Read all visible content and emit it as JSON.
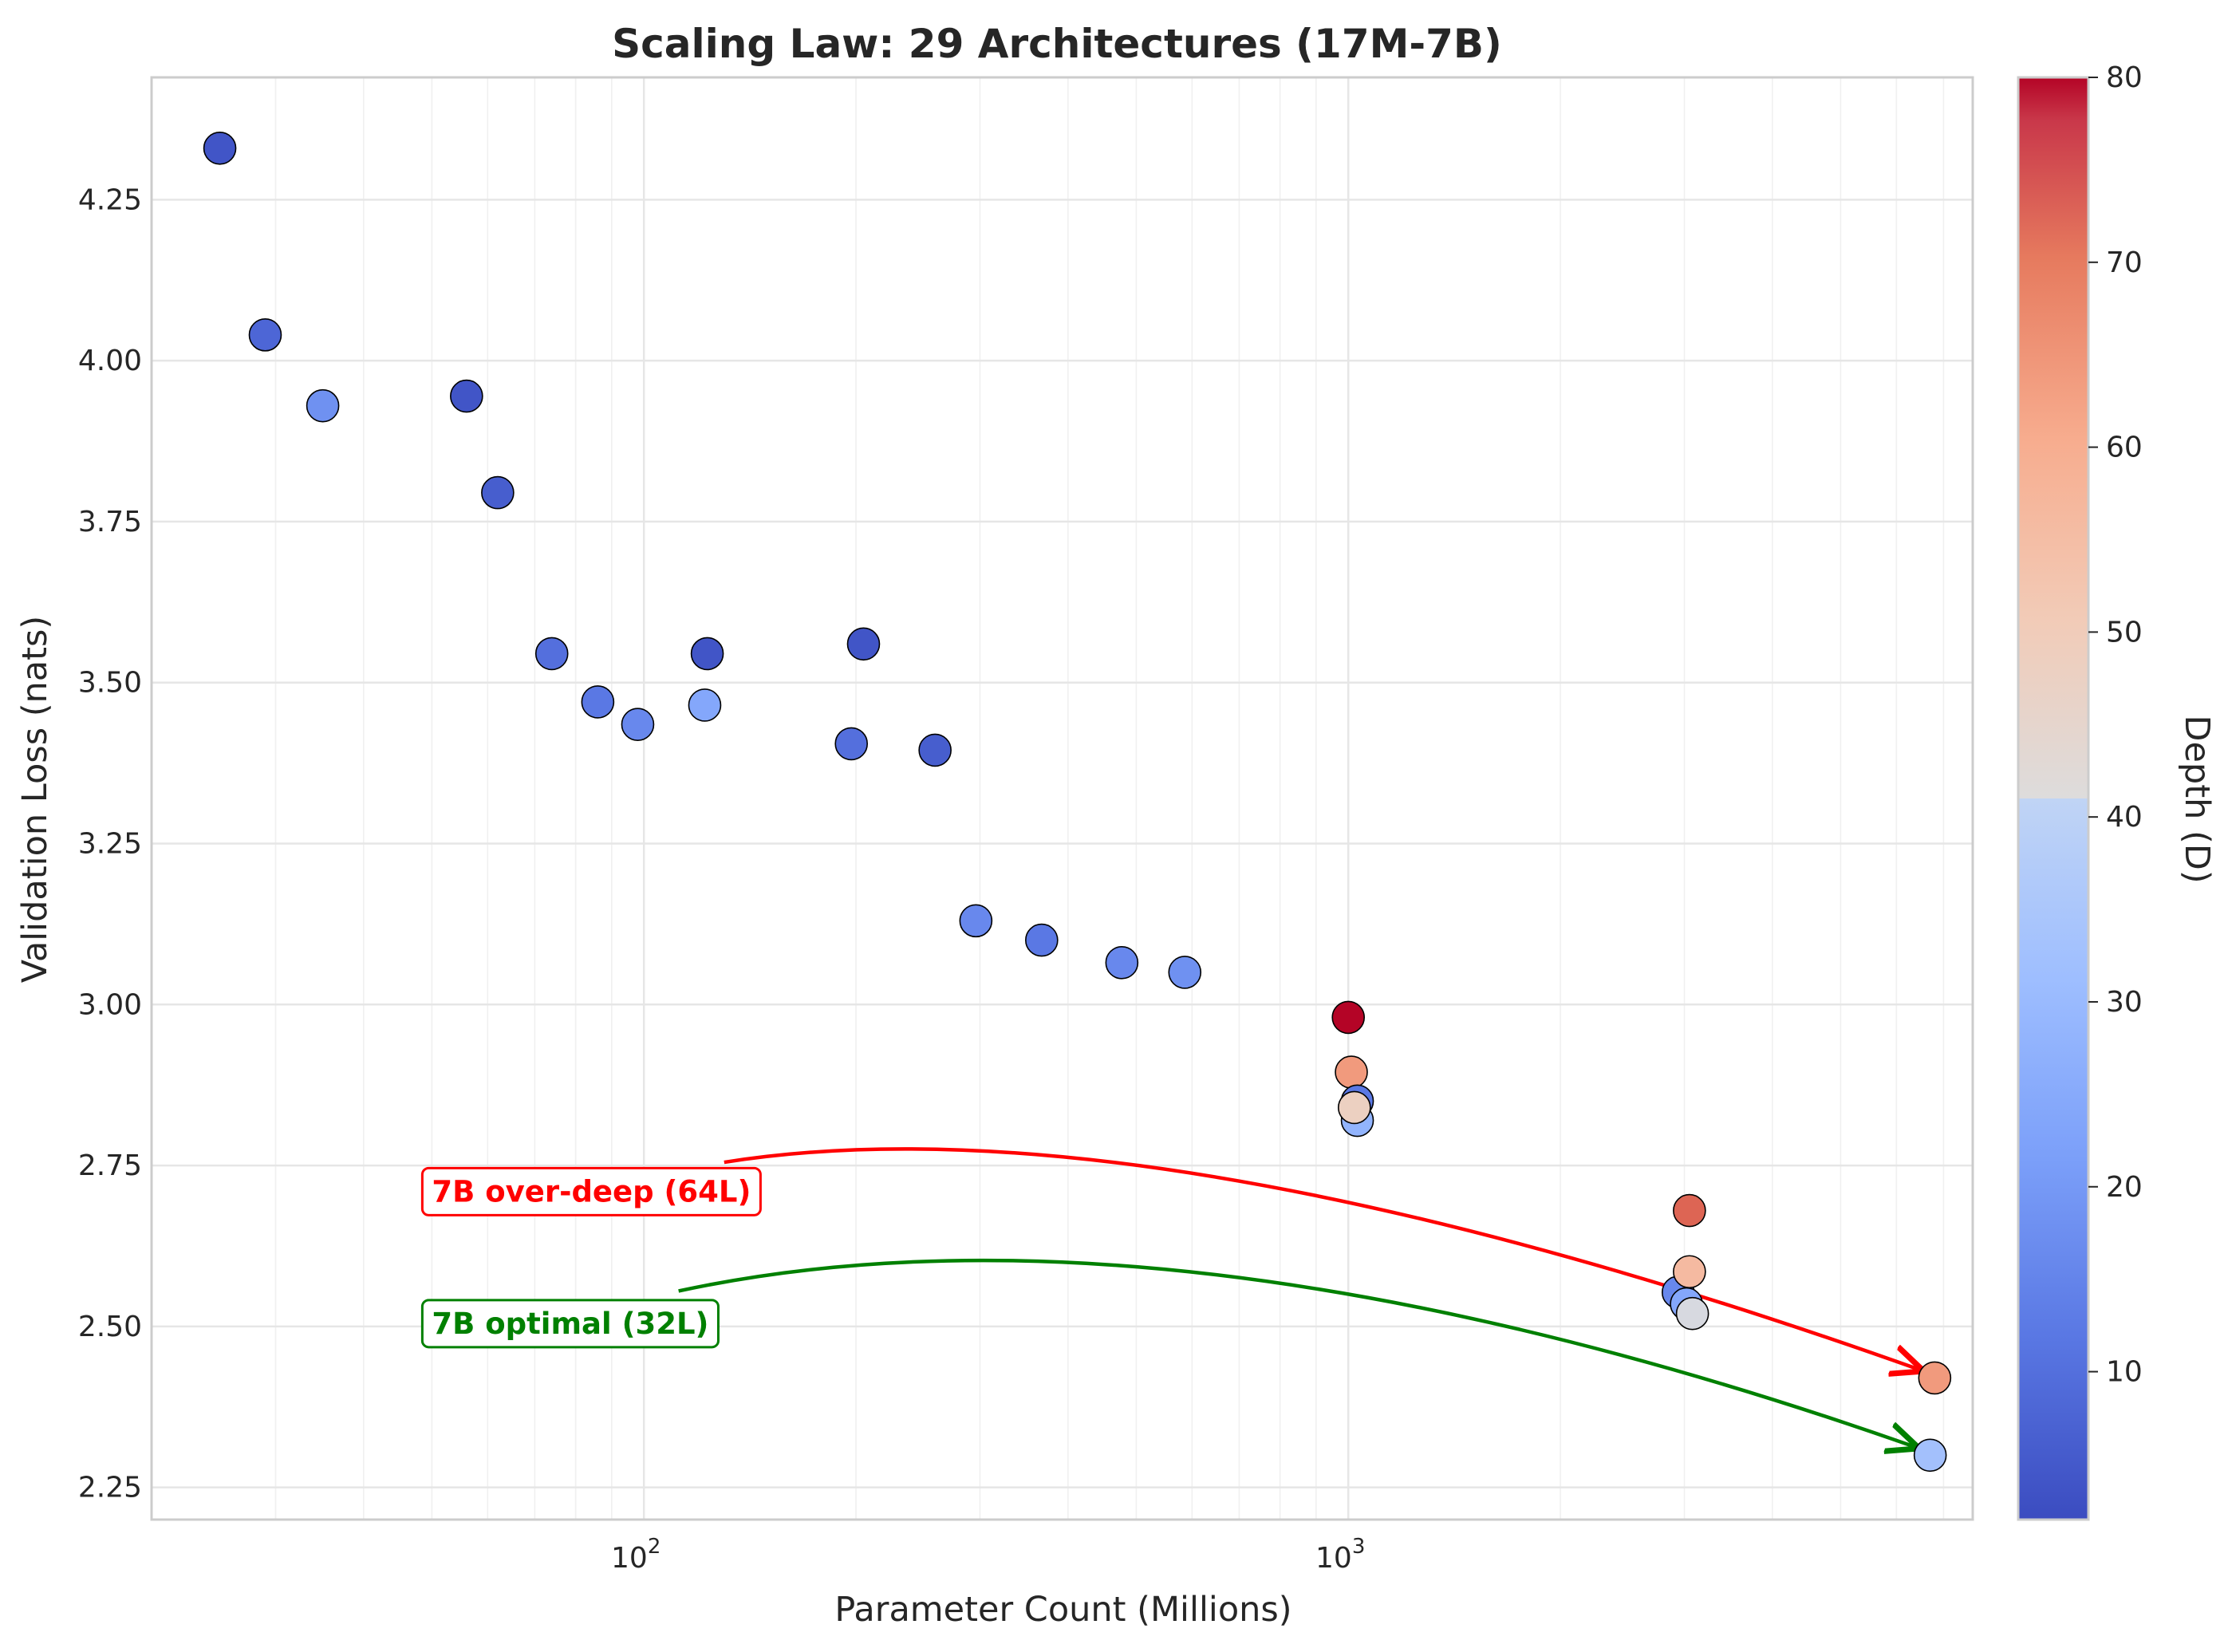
{
  "chart_data": {
    "type": "scatter",
    "title": "Scaling Law: 29 Architectures (17M-7B)",
    "xlabel": "Parameter Count (Millions)",
    "ylabel": "Validation Loss (nats)",
    "x_scale": "log",
    "xlim": [
      20,
      7700
    ],
    "ylim": [
      2.2,
      4.44
    ],
    "x_ticks": [
      {
        "value": 100,
        "base": "10",
        "exp": "2"
      },
      {
        "value": 1000,
        "base": "10",
        "exp": "3"
      }
    ],
    "y_ticks": [
      "2.25",
      "2.50",
      "2.75",
      "3.00",
      "3.25",
      "3.50",
      "3.75",
      "4.00",
      "4.25"
    ],
    "grid": true,
    "colorbar": {
      "label": "Depth (D)",
      "colormap": "coolwarm",
      "range": [
        2,
        80
      ],
      "ticks": [
        "10",
        "20",
        "30",
        "40",
        "50",
        "60",
        "70",
        "80"
      ]
    },
    "points": [
      {
        "x": 25,
        "y": 4.33,
        "depth": 4
      },
      {
        "x": 29,
        "y": 4.04,
        "depth": 8
      },
      {
        "x": 35,
        "y": 3.93,
        "depth": 18
      },
      {
        "x": 56,
        "y": 3.945,
        "depth": 4
      },
      {
        "x": 62,
        "y": 3.795,
        "depth": 6
      },
      {
        "x": 74,
        "y": 3.545,
        "depth": 10
      },
      {
        "x": 86,
        "y": 3.47,
        "depth": 12
      },
      {
        "x": 98,
        "y": 3.435,
        "depth": 16
      },
      {
        "x": 123,
        "y": 3.545,
        "depth": 4
      },
      {
        "x": 122,
        "y": 3.465,
        "depth": 24
      },
      {
        "x": 197,
        "y": 3.405,
        "depth": 10
      },
      {
        "x": 205,
        "y": 3.56,
        "depth": 4
      },
      {
        "x": 259,
        "y": 3.395,
        "depth": 6
      },
      {
        "x": 296,
        "y": 3.13,
        "depth": 16
      },
      {
        "x": 367,
        "y": 3.1,
        "depth": 12
      },
      {
        "x": 477,
        "y": 3.065,
        "depth": 16
      },
      {
        "x": 586,
        "y": 3.05,
        "depth": 18
      },
      {
        "x": 1000,
        "y": 2.98,
        "depth": 80
      },
      {
        "x": 1010,
        "y": 2.895,
        "depth": 64
      },
      {
        "x": 1030,
        "y": 2.85,
        "depth": 12
      },
      {
        "x": 1030,
        "y": 2.82,
        "depth": 28
      },
      {
        "x": 1020,
        "y": 2.84,
        "depth": 48
      },
      {
        "x": 3050,
        "y": 2.68,
        "depth": 72
      },
      {
        "x": 2940,
        "y": 2.553,
        "depth": 16
      },
      {
        "x": 3020,
        "y": 2.535,
        "depth": 24
      },
      {
        "x": 3050,
        "y": 2.585,
        "depth": 56
      },
      {
        "x": 3080,
        "y": 2.52,
        "depth": 40
      },
      {
        "x": 6800,
        "y": 2.42,
        "depth": 64
      },
      {
        "x": 6700,
        "y": 2.3,
        "depth": 32
      }
    ],
    "annotations": [
      {
        "text": "7B over-deep (64L)",
        "text_anchor": {
          "x": 50,
          "y": 2.71
        },
        "arrow_start": {
          "x": 130,
          "y": 2.755
        },
        "arrow_end": {
          "x": 6800,
          "y": 2.42
        },
        "control": {
          "x": 520,
          "y": 2.86
        },
        "color": "#ff0000"
      },
      {
        "text": "7B optimal (32L)",
        "text_anchor": {
          "x": 50,
          "y": 2.505
        },
        "arrow_start": {
          "x": 112,
          "y": 2.555
        },
        "arrow_end": {
          "x": 6700,
          "y": 2.3
        },
        "control": {
          "x": 560,
          "y": 2.72
        },
        "color": "#008000"
      }
    ]
  }
}
